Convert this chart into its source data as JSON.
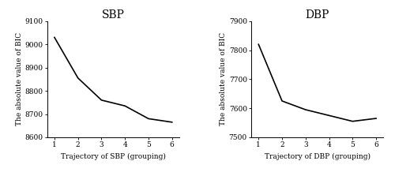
{
  "sbp": {
    "title": "SBP",
    "x": [
      1,
      2,
      3,
      4,
      5,
      6
    ],
    "y": [
      9030,
      8855,
      8760,
      8735,
      8680,
      8665
    ],
    "xlabel": "Trajectory of SBP (grouping)",
    "ylabel": "The absolute value of BIC",
    "ylim": [
      8600,
      9100
    ],
    "yticks": [
      8600,
      8700,
      8800,
      8900,
      9000,
      9100
    ],
    "xticks": [
      1,
      2,
      3,
      4,
      5,
      6
    ]
  },
  "dbp": {
    "title": "DBP",
    "x": [
      1,
      2,
      3,
      4,
      5,
      6
    ],
    "y": [
      7820,
      7625,
      7595,
      7575,
      7555,
      7565
    ],
    "xlabel": "Trajectory of DBP (grouping)",
    "ylabel": "The absolute value of BIC",
    "ylim": [
      7500,
      7900
    ],
    "yticks": [
      7500,
      7600,
      7700,
      7800,
      7900
    ],
    "xticks": [
      1,
      2,
      3,
      4,
      5,
      6
    ]
  },
  "line_color": "#000000",
  "line_width": 1.2,
  "bg_color": "#ffffff",
  "title_fontsize": 10,
  "label_fontsize": 6.5,
  "tick_fontsize": 6.5
}
